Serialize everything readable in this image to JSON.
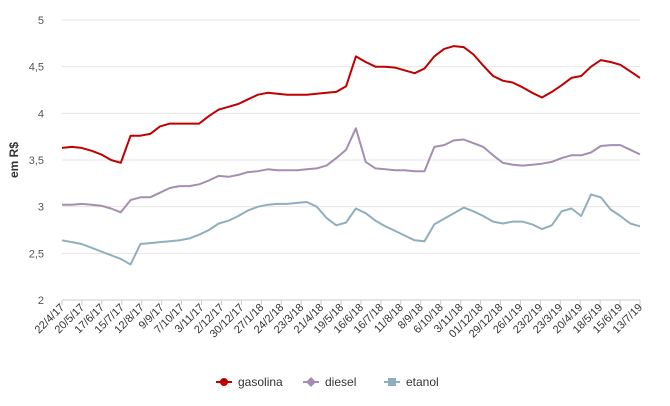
{
  "chart_data": {
    "type": "line",
    "xlabel": "",
    "ylabel": "em R$",
    "ylim": [
      2,
      5
    ],
    "yticks": [
      2,
      2.5,
      3,
      3.5,
      4,
      4.5,
      5
    ],
    "ytick_labels": [
      "2",
      "2,5",
      "3",
      "3,5",
      "4",
      "4,5",
      "5"
    ],
    "xtick_labels": [
      "22/4/17",
      "20/5/17",
      "17/6/17",
      "15/7/17",
      "12/8/17",
      "9/9/17",
      "7/10/17",
      "3/11/17",
      "2/12/17",
      "30/12/17",
      "27/1/18",
      "24/2/18",
      "23/3/18",
      "21/4/18",
      "19/5/18",
      "16/6/18",
      "16/7/18",
      "11/8/18",
      "8/9/18",
      "6/10/18",
      "3/11/18",
      "01/12/18",
      "29/12/18",
      "26/1/19",
      "23/2/19",
      "23/3/19",
      "20/4/19",
      "18/5/19",
      "15/6/19",
      "13/7/19"
    ],
    "grid": "horizontal",
    "legend_position": "bottom",
    "series": [
      {
        "name": "gasolina",
        "color": "#c00000",
        "marker": "circle",
        "values": [
          3.63,
          3.64,
          3.63,
          3.6,
          3.56,
          3.5,
          3.47,
          3.76,
          3.76,
          3.78,
          3.86,
          3.89,
          3.89,
          3.89,
          3.89,
          3.97,
          4.04,
          4.07,
          4.1,
          4.15,
          4.2,
          4.22,
          4.21,
          4.2,
          4.2,
          4.2,
          4.21,
          4.22,
          4.23,
          4.29,
          4.61,
          4.55,
          4.5,
          4.5,
          4.49,
          4.46,
          4.43,
          4.48,
          4.61,
          4.69,
          4.72,
          4.71,
          4.63,
          4.51,
          4.4,
          4.35,
          4.33,
          4.28,
          4.22,
          4.17,
          4.23,
          4.3,
          4.38,
          4.4,
          4.5,
          4.57,
          4.55,
          4.52,
          4.45,
          4.38
        ]
      },
      {
        "name": "diesel",
        "color": "#a58db3",
        "marker": "diamond",
        "values": [
          3.02,
          3.02,
          3.03,
          3.02,
          3.01,
          2.98,
          2.94,
          3.07,
          3.1,
          3.1,
          3.15,
          3.2,
          3.22,
          3.22,
          3.24,
          3.28,
          3.33,
          3.32,
          3.34,
          3.37,
          3.38,
          3.4,
          3.39,
          3.39,
          3.39,
          3.4,
          3.41,
          3.44,
          3.52,
          3.61,
          3.84,
          3.48,
          3.41,
          3.4,
          3.39,
          3.39,
          3.38,
          3.38,
          3.64,
          3.66,
          3.71,
          3.72,
          3.68,
          3.64,
          3.55,
          3.47,
          3.45,
          3.44,
          3.45,
          3.46,
          3.48,
          3.52,
          3.55,
          3.55,
          3.58,
          3.65,
          3.66,
          3.66,
          3.61,
          3.56
        ]
      },
      {
        "name": "etanol",
        "color": "#8fafbf",
        "marker": "square",
        "values": [
          2.64,
          2.62,
          2.6,
          2.56,
          2.52,
          2.48,
          2.44,
          2.38,
          2.6,
          2.61,
          2.62,
          2.63,
          2.64,
          2.66,
          2.7,
          2.75,
          2.82,
          2.85,
          2.9,
          2.96,
          3.0,
          3.02,
          3.03,
          3.03,
          3.04,
          3.05,
          3.0,
          2.88,
          2.8,
          2.83,
          2.98,
          2.93,
          2.85,
          2.79,
          2.74,
          2.69,
          2.64,
          2.63,
          2.81,
          2.87,
          2.93,
          2.99,
          2.95,
          2.9,
          2.84,
          2.82,
          2.84,
          2.84,
          2.81,
          2.76,
          2.8,
          2.95,
          2.98,
          2.9,
          3.13,
          3.1,
          2.97,
          2.9,
          2.82,
          2.79
        ]
      }
    ]
  }
}
